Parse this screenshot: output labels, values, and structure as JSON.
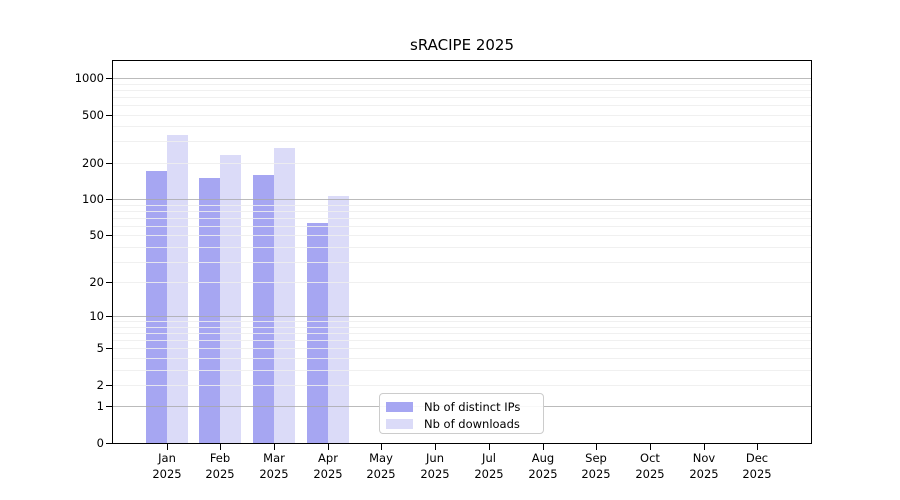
{
  "title": "sRACIPE 2025",
  "chart_data": {
    "type": "bar",
    "title": "sRACIPE 2025",
    "categories": [
      "Jan",
      "Feb",
      "Mar",
      "Apr",
      "May",
      "Jun",
      "Jul",
      "Aug",
      "Sep",
      "Oct",
      "Nov",
      "Dec"
    ],
    "year_label": "2025",
    "series": [
      {
        "name": "Nb of distinct IPs",
        "color": "#a6a6f2",
        "values": [
          170,
          150,
          160,
          63,
          null,
          null,
          null,
          null,
          null,
          null,
          null,
          null
        ]
      },
      {
        "name": "Nb of downloads",
        "color": "#dbdbf8",
        "values": [
          340,
          230,
          265,
          106,
          null,
          null,
          null,
          null,
          null,
          null,
          null,
          null
        ]
      }
    ],
    "yticks": [
      0,
      1,
      2,
      5,
      10,
      20,
      50,
      100,
      200,
      500,
      1000
    ],
    "scale": "log10(value+1)",
    "ylim": [
      0,
      1380
    ],
    "grid": {
      "major_lines": [
        1,
        10,
        100,
        1000
      ],
      "minor_lines": [
        2,
        3,
        4,
        5,
        6,
        7,
        8,
        9,
        20,
        30,
        40,
        50,
        60,
        70,
        80,
        90,
        200,
        300,
        400,
        500,
        600,
        700,
        800,
        900
      ]
    },
    "legend_position": "bottom-center",
    "colors": {
      "bar_dark": "#a6a6f2",
      "bar_light": "#dbdbf8",
      "grid_major": "#bfbfbf",
      "grid_minor": "#ededed",
      "axis": "#000000",
      "background": "#ffffff"
    }
  }
}
